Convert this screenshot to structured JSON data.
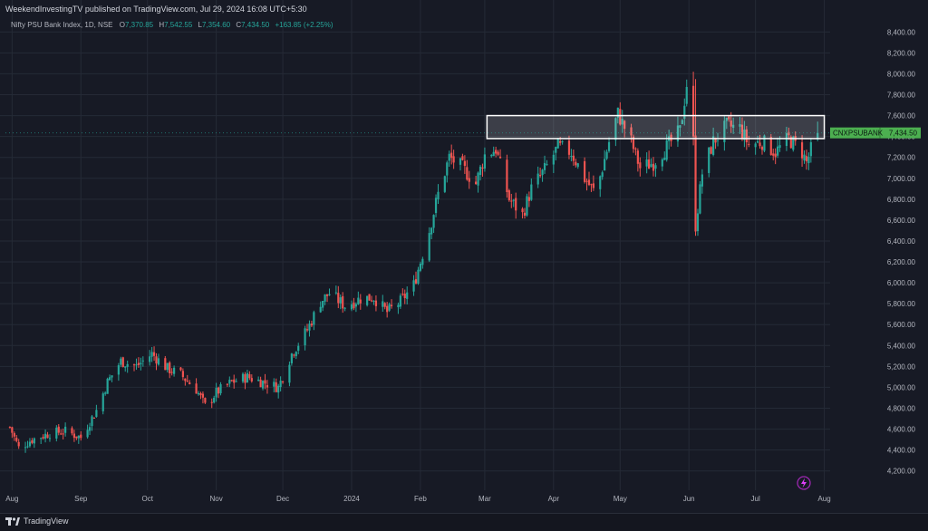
{
  "header": {
    "publisher": "WeekendInvestingTV published on TradingView.com, Jul 29, 2024 16:08 UTC+5:30"
  },
  "legend": {
    "symbol": "Nifty PSU Bank Index, 1D, NSE",
    "o_label": "O",
    "o_value": "7,370.85",
    "h_label": "H",
    "h_value": "7,542.55",
    "l_label": "L",
    "l_value": "7,354.60",
    "c_label": "C",
    "c_value": "7,434.50",
    "change": "+163.85 (+2.25%)"
  },
  "footer": {
    "brand": "TradingView"
  },
  "colors": {
    "up": "#26a69a",
    "down": "#ef5350",
    "grid": "#252a36",
    "background": "#171a25",
    "badge": "#4caf50"
  },
  "chart_data": {
    "type": "candlestick",
    "symbol_badge": "CNXPSUBANK",
    "last_price": 7434.5,
    "last_price_label": "7,434.50",
    "ylim": [
      4050,
      8550
    ],
    "y_ticks": [
      4200,
      4400,
      4600,
      4800,
      5000,
      5200,
      5400,
      5600,
      5800,
      6000,
      6200,
      6400,
      6600,
      6800,
      7000,
      7200,
      7400,
      7600,
      7800,
      8000,
      8200,
      8400
    ],
    "y_tick_labels": [
      "4,200.00",
      "4,400.00",
      "4,600.00",
      "4,800.00",
      "5,000.00",
      "5,200.00",
      "5,400.00",
      "5,600.00",
      "5,800.00",
      "6,000.00",
      "6,200.00",
      "6,400.00",
      "6,600.00",
      "6,800.00",
      "7,000.00",
      "7,200.00",
      "7,400.00",
      "7,600.00",
      "7,800.00",
      "8,000.00",
      "8,200.00",
      "8,400.00"
    ],
    "x_labels": [
      "Aug",
      "Sep",
      "Oct",
      "Nov",
      "Dec",
      "2024",
      "Feb",
      "Mar",
      "Apr",
      "May",
      "Jun",
      "Jul",
      "Aug"
    ],
    "x_label_dates": [
      "2023-08-01",
      "2023-09-01",
      "2023-10-01",
      "2023-11-01",
      "2023-12-01",
      "2024-01-01",
      "2024-02-01",
      "2024-03-01",
      "2024-04-01",
      "2024-05-01",
      "2024-06-01",
      "2024-07-01",
      "2024-08-01"
    ],
    "x_range": [
      "2023-07-29",
      "2024-08-02"
    ],
    "close_path": [
      [
        "2023-07-31",
        4620
      ],
      [
        "2023-08-04",
        4420
      ],
      [
        "2023-08-10",
        4500
      ],
      [
        "2023-08-18",
        4560
      ],
      [
        "2023-08-25",
        4580
      ],
      [
        "2023-09-01",
        4520
      ],
      [
        "2023-09-08",
        4780
      ],
      [
        "2023-09-13",
        5050
      ],
      [
        "2023-09-19",
        5250
      ],
      [
        "2023-09-26",
        5200
      ],
      [
        "2023-10-03",
        5320
      ],
      [
        "2023-10-10",
        5180
      ],
      [
        "2023-10-16",
        5120
      ],
      [
        "2023-10-23",
        4980
      ],
      [
        "2023-10-27",
        4820
      ],
      [
        "2023-11-01",
        4950
      ],
      [
        "2023-11-08",
        5050
      ],
      [
        "2023-11-15",
        5100
      ],
      [
        "2023-11-22",
        5050
      ],
      [
        "2023-11-29",
        5000
      ],
      [
        "2023-12-05",
        5320
      ],
      [
        "2023-12-12",
        5550
      ],
      [
        "2023-12-18",
        5820
      ],
      [
        "2023-12-22",
        5900
      ],
      [
        "2023-12-29",
        5780
      ],
      [
        "2024-01-05",
        5850
      ],
      [
        "2024-01-11",
        5860
      ],
      [
        "2024-01-17",
        5720
      ],
      [
        "2024-01-23",
        5820
      ],
      [
        "2024-01-29",
        5980
      ],
      [
        "2024-02-05",
        6500
      ],
      [
        "2024-02-09",
        6850
      ],
      [
        "2024-02-14",
        7200
      ],
      [
        "2024-02-20",
        7100
      ],
      [
        "2024-02-26",
        6950
      ],
      [
        "2024-03-01",
        7220
      ],
      [
        "2024-03-06",
        7280
      ],
      [
        "2024-03-12",
        6800
      ],
      [
        "2024-03-18",
        6650
      ],
      [
        "2024-03-22",
        6900
      ],
      [
        "2024-03-28",
        7080
      ],
      [
        "2024-04-03",
        7300
      ],
      [
        "2024-04-09",
        7250
      ],
      [
        "2024-04-15",
        7000
      ],
      [
        "2024-04-20",
        6850
      ],
      [
        "2024-04-26",
        7350
      ],
      [
        "2024-04-30",
        7620
      ],
      [
        "2024-05-06",
        7350
      ],
      [
        "2024-05-10",
        7100
      ],
      [
        "2024-05-16",
        7150
      ],
      [
        "2024-05-22",
        7300
      ],
      [
        "2024-05-28",
        7450
      ],
      [
        "2024-05-31",
        7900
      ],
      [
        "2024-06-03",
        7350
      ],
      [
        "2024-06-04",
        6550
      ],
      [
        "2024-06-07",
        7050
      ],
      [
        "2024-06-12",
        7350
      ],
      [
        "2024-06-18",
        7500
      ],
      [
        "2024-06-24",
        7480
      ],
      [
        "2024-06-28",
        7320
      ],
      [
        "2024-07-04",
        7350
      ],
      [
        "2024-07-10",
        7250
      ],
      [
        "2024-07-16",
        7380
      ],
      [
        "2024-07-22",
        7250
      ],
      [
        "2024-07-24",
        7150
      ],
      [
        "2024-07-26",
        7270
      ],
      [
        "2024-07-29",
        7434.5
      ]
    ],
    "annotation_rect": {
      "from": "2024-03-02",
      "to": "2024-08-01",
      "top": 7600,
      "bottom": 7380
    }
  }
}
